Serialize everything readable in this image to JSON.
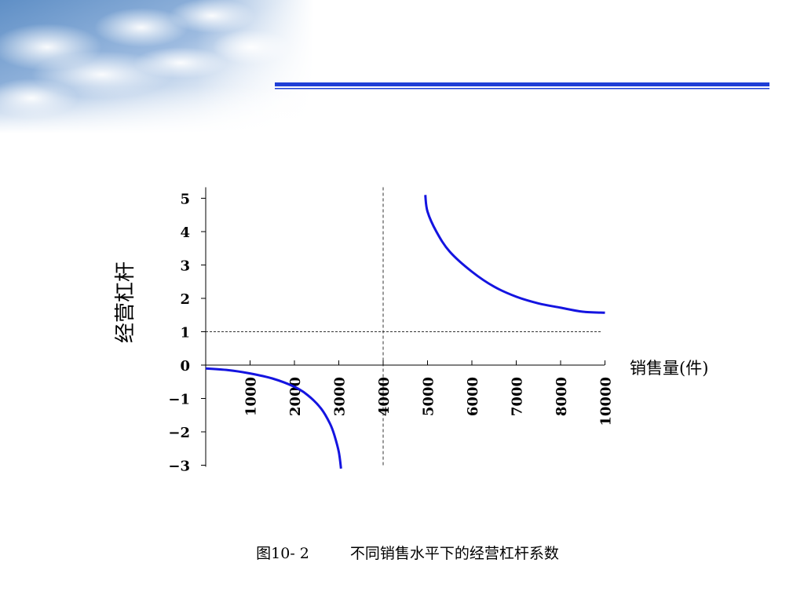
{
  "slide": {
    "caption_number": "图10- 2",
    "caption_text": "不同销售水平下的经营杠杆系数",
    "colors": {
      "header_line": "#1f3fd6",
      "curve": "#1414e0",
      "axis": "#000000",
      "sky": "#7fa3cf"
    }
  },
  "chart_data": {
    "type": "line",
    "title": "",
    "xlabel": "销售量(件)",
    "ylabel": "经营杠杆",
    "xlim": [
      0,
      10000
    ],
    "ylim": [
      -3,
      5
    ],
    "x_ticks": [
      1000,
      2000,
      3000,
      4000,
      5000,
      6000,
      7000,
      8000,
      10000
    ],
    "y_ticks": [
      5,
      4,
      3,
      2,
      1,
      0,
      -1,
      -2,
      -3
    ],
    "y_tick_labels": [
      "5",
      "4",
      "3",
      "2",
      "1",
      "0",
      "−1",
      "−2",
      "−3"
    ],
    "x_scale": "categorical ticks, unequal data spacing (9000 omitted)",
    "series": [
      {
        "x": [
          0,
          500,
          1000,
          1500,
          2000,
          2300,
          2600,
          2800,
          2900,
          3000,
          3050
        ],
        "y": [
          -0.1,
          -0.15,
          -0.25,
          -0.4,
          -0.65,
          -0.9,
          -1.3,
          -1.75,
          -2.1,
          -2.6,
          -3.1
        ]
      },
      {
        "x": [
          4950,
          5000,
          5200,
          5500,
          6000,
          6500,
          7000,
          7500,
          8000,
          9000,
          10000
        ],
        "y": [
          5.1,
          4.6,
          4.0,
          3.4,
          2.8,
          2.35,
          2.05,
          1.85,
          1.72,
          1.6,
          1.57
        ]
      }
    ],
    "reference_lines": [
      {
        "orientation": "vertical",
        "x": 4000,
        "style": "dashed"
      },
      {
        "orientation": "horizontal",
        "y": 1,
        "style": "dashed"
      }
    ],
    "legend": "none",
    "grid": false
  }
}
